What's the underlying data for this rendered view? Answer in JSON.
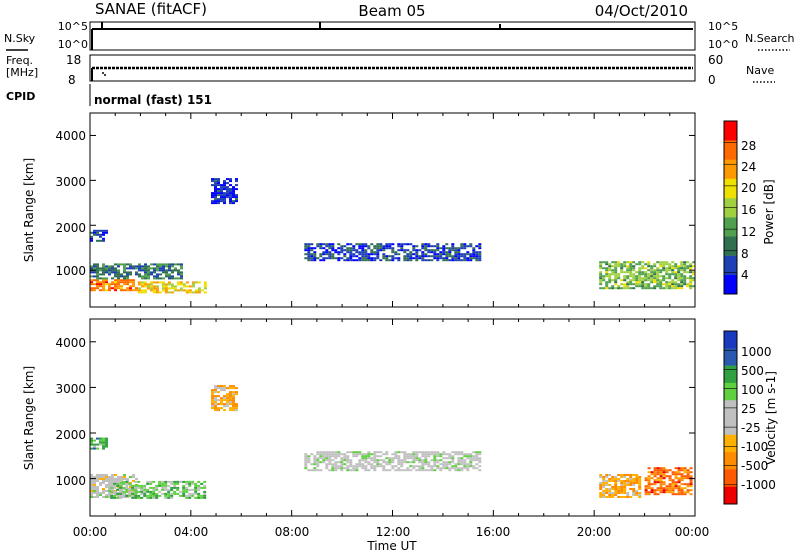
{
  "header": {
    "station": "SANAE (fitACF)",
    "beam": "Beam 05",
    "date": "04/Oct/2010"
  },
  "panels": {
    "nsky_label": "N.Sky",
    "nsky_ticks": [
      "10^5",
      "10^0"
    ],
    "nsearch_label": "N.Search",
    "nsearch_ticks": [
      "10^5",
      "10^0"
    ],
    "freq_label": "Freq.",
    "freq_unit": "[MHz]",
    "freq_ticks": [
      "18",
      "8"
    ],
    "nave_label": "Nave",
    "nave_ticks": [
      "60",
      "0"
    ],
    "cpid_label": "CPID",
    "cpid_text": "normal (fast) 151"
  },
  "colors": {
    "power": [
      "#0000ff",
      "#1f3fb4",
      "#307050",
      "#50a050",
      "#a0d040",
      "#f0e000",
      "#ff9900",
      "#ff6a00",
      "#ff0000"
    ],
    "velocity": [
      "#ee0000",
      "#ff5a00",
      "#ff8c00",
      "#ffb000",
      "#c0c0c0",
      "#c0c0c0",
      "#60d040",
      "#30a040",
      "#2a5ab0",
      "#1a3ac0"
    ]
  },
  "chart_data": [
    {
      "type": "heatmap",
      "name": "power",
      "ylabel": "Slant Range [km]",
      "xlim": [
        "00:00",
        "24:00"
      ],
      "ylim": [
        180,
        4500
      ],
      "yticks": [
        "1000",
        "2000",
        "3000",
        "4000"
      ],
      "colorbar_label": "Power [dB]",
      "colorbar_ticks": [
        "4",
        "8",
        "12",
        "16",
        "20",
        "24",
        "28"
      ],
      "regions": [
        {
          "t0": 0.0,
          "t1": 1.9,
          "r0": 550,
          "r1": 800,
          "level": 6.5
        },
        {
          "t0": 0.0,
          "t1": 3.6,
          "r0": 800,
          "r1": 1150,
          "level": 2
        },
        {
          "t0": 1.9,
          "t1": 4.6,
          "r0": 500,
          "r1": 750,
          "level": 5
        },
        {
          "t0": 0.0,
          "t1": 0.7,
          "r0": 1650,
          "r1": 1900,
          "level": 1
        },
        {
          "t0": 4.8,
          "t1": 5.8,
          "r0": 2500,
          "r1": 3050,
          "level": 0.5
        },
        {
          "t0": 8.5,
          "t1": 15.5,
          "r0": 1200,
          "r1": 1600,
          "level": 1
        },
        {
          "t0": 20.2,
          "t1": 23.9,
          "r0": 600,
          "r1": 1200,
          "level": 3.5
        }
      ]
    },
    {
      "type": "heatmap",
      "name": "velocity",
      "ylabel": "Slant Range [km]",
      "xlabel": "Time UT",
      "xlim": [
        "00:00",
        "24:00"
      ],
      "xticks": [
        "00:00",
        "04:00",
        "08:00",
        "12:00",
        "16:00",
        "20:00",
        "00:00"
      ],
      "ylim": [
        180,
        4500
      ],
      "yticks": [
        "1000",
        "2000",
        "3000",
        "4000"
      ],
      "colorbar_label": "Velocity [m s-1]",
      "colorbar_ticks": [
        "1000",
        "500",
        "100",
        "25",
        "-25",
        "-100",
        "-500",
        "-1000"
      ],
      "regions": [
        {
          "t0": 0.0,
          "t1": 1.9,
          "r0": 600,
          "r1": 1100,
          "level": 4.5
        },
        {
          "t0": 0.8,
          "t1": 4.6,
          "r0": 560,
          "r1": 950,
          "level": 6
        },
        {
          "t0": 0.0,
          "t1": 0.7,
          "r0": 1650,
          "r1": 1900,
          "level": 6.5
        },
        {
          "t0": 4.8,
          "t1": 5.8,
          "r0": 2500,
          "r1": 3050,
          "level": 3
        },
        {
          "t0": 8.5,
          "t1": 15.5,
          "r0": 1200,
          "r1": 1600,
          "level": 4.7
        },
        {
          "t0": 20.2,
          "t1": 21.8,
          "r0": 600,
          "r1": 1100,
          "level": 2.8
        },
        {
          "t0": 22.0,
          "t1": 23.9,
          "r0": 650,
          "r1": 1250,
          "level": 1.5
        }
      ]
    }
  ]
}
